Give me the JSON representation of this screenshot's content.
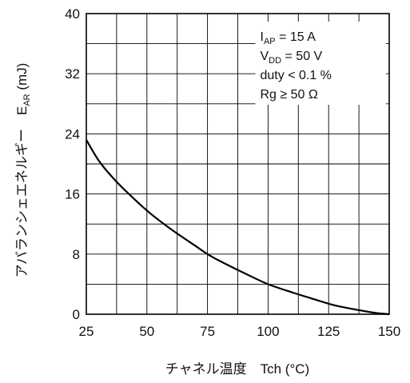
{
  "chart_data": {
    "type": "line",
    "xlabel": "チャネル温度　Tch  (°C)",
    "ylabel": "アバランシェエネルギー　",
    "ylabel_symbol": "E",
    "ylabel_sub": "AR",
    "ylabel_unit": "  (mJ)",
    "xlim": [
      25,
      150
    ],
    "ylim": [
      0,
      40
    ],
    "x_ticks": [
      "25",
      "50",
      "75",
      "100",
      "125",
      "150"
    ],
    "y_ticks": [
      "0",
      "8",
      "16",
      "24",
      "32",
      "40"
    ],
    "x_minor_step": 12.5,
    "y_minor_step": 4,
    "grid": true,
    "series": [
      {
        "x": [
          25,
          30,
          35,
          40,
          50,
          60,
          70,
          75,
          80,
          90,
          100,
          110,
          120,
          125,
          130,
          140,
          145,
          150
        ],
        "y": [
          23.2,
          20.5,
          18.5,
          16.8,
          13.8,
          11.3,
          9.1,
          8.0,
          7.1,
          5.5,
          4.0,
          2.9,
          1.9,
          1.4,
          1.0,
          0.4,
          0.15,
          0
        ]
      }
    ],
    "annotations": [
      {
        "main": "I",
        "sub": "AP",
        "rest": " = 15 A"
      },
      {
        "main": "V",
        "sub": "DD",
        "rest": " = 50 V"
      },
      {
        "main": "duty < 0.1 %",
        "sub": "",
        "rest": ""
      },
      {
        "main": "Rg ≥ 50 Ω",
        "sub": "",
        "rest": ""
      }
    ],
    "colors": {
      "line": "#000000",
      "grid": "#000000",
      "background": "#ffffff"
    }
  }
}
